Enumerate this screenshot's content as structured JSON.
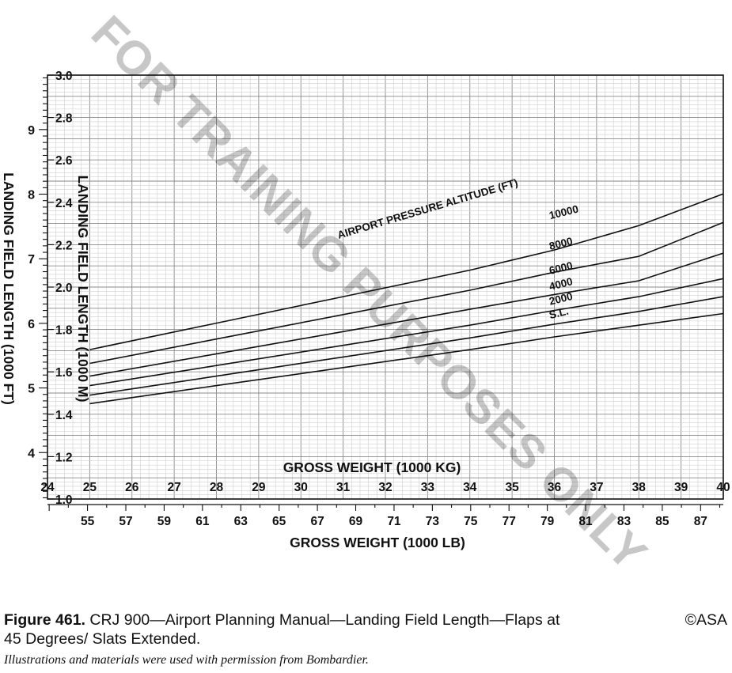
{
  "watermark": "FOR TRAINING PURPOSES ONLY",
  "caption": {
    "figure_label": "Figure 461.",
    "text_line1": "CRJ 900—Airport Planning Manual—Landing Field Length—Flaps at",
    "text_line2": "45 Degrees/ Slats Extended.",
    "copyright": "©ASA"
  },
  "credit": "Illustrations and materials were used with permission from Bombardier.",
  "chart_data": {
    "type": "line",
    "title": "",
    "curve_group_label": "AIRPORT PRESSURE ALTITUDE (FT)",
    "x_primary": {
      "label": "GROSS WEIGHT (1000 KG)",
      "range": [
        24,
        40
      ],
      "ticks": [
        "24",
        "25",
        "26",
        "27",
        "28",
        "29",
        "30",
        "31",
        "32",
        "33",
        "34",
        "35",
        "36",
        "37",
        "38",
        "39",
        "40"
      ]
    },
    "x_secondary": {
      "label": "GROSS WEIGHT (1000 LB)",
      "ticks": [
        "55",
        "57",
        "59",
        "61",
        "63",
        "65",
        "67",
        "69",
        "71",
        "73",
        "75",
        "77",
        "79",
        "81",
        "83",
        "85",
        "87"
      ]
    },
    "y_left": {
      "label": "LANDING FIELD LENGTH (1000 FT)",
      "ticks": [
        "4",
        "5",
        "6",
        "7",
        "8",
        "9"
      ]
    },
    "y_right": {
      "label": "LANDING FIELD LENGTH (1000 M)",
      "range": [
        1.0,
        3.0
      ],
      "ticks": [
        "1.0",
        "1.2",
        "1.4",
        "1.6",
        "1.8",
        "2.0",
        "2.2",
        "2.4",
        "2.6",
        "2.8",
        "3.0"
      ]
    },
    "grid": true,
    "series": [
      {
        "name": "S.L.",
        "x": [
          25,
          28,
          31,
          34,
          36,
          38,
          40
        ],
        "y": [
          1.45,
          1.535,
          1.62,
          1.705,
          1.765,
          1.82,
          1.875
        ]
      },
      {
        "name": "2000",
        "x": [
          25,
          28,
          31,
          34,
          36,
          38,
          40
        ],
        "y": [
          1.49,
          1.58,
          1.67,
          1.76,
          1.825,
          1.885,
          1.955
        ]
      },
      {
        "name": "4000",
        "x": [
          25,
          28,
          31,
          34,
          36,
          38,
          40
        ],
        "y": [
          1.535,
          1.63,
          1.725,
          1.82,
          1.89,
          1.955,
          2.04
        ]
      },
      {
        "name": "6000",
        "x": [
          25,
          28,
          31,
          34,
          36,
          38,
          40
        ],
        "y": [
          1.58,
          1.685,
          1.79,
          1.895,
          1.965,
          2.03,
          2.16
        ]
      },
      {
        "name": "8000",
        "x": [
          25,
          28,
          31,
          34,
          36,
          38,
          40
        ],
        "y": [
          1.64,
          1.755,
          1.87,
          1.985,
          2.07,
          2.145,
          2.305
        ]
      },
      {
        "name": "10000",
        "x": [
          25,
          28,
          31,
          34,
          36,
          38,
          40
        ],
        "y": [
          1.705,
          1.83,
          1.955,
          2.08,
          2.175,
          2.29,
          2.44
        ]
      }
    ]
  }
}
